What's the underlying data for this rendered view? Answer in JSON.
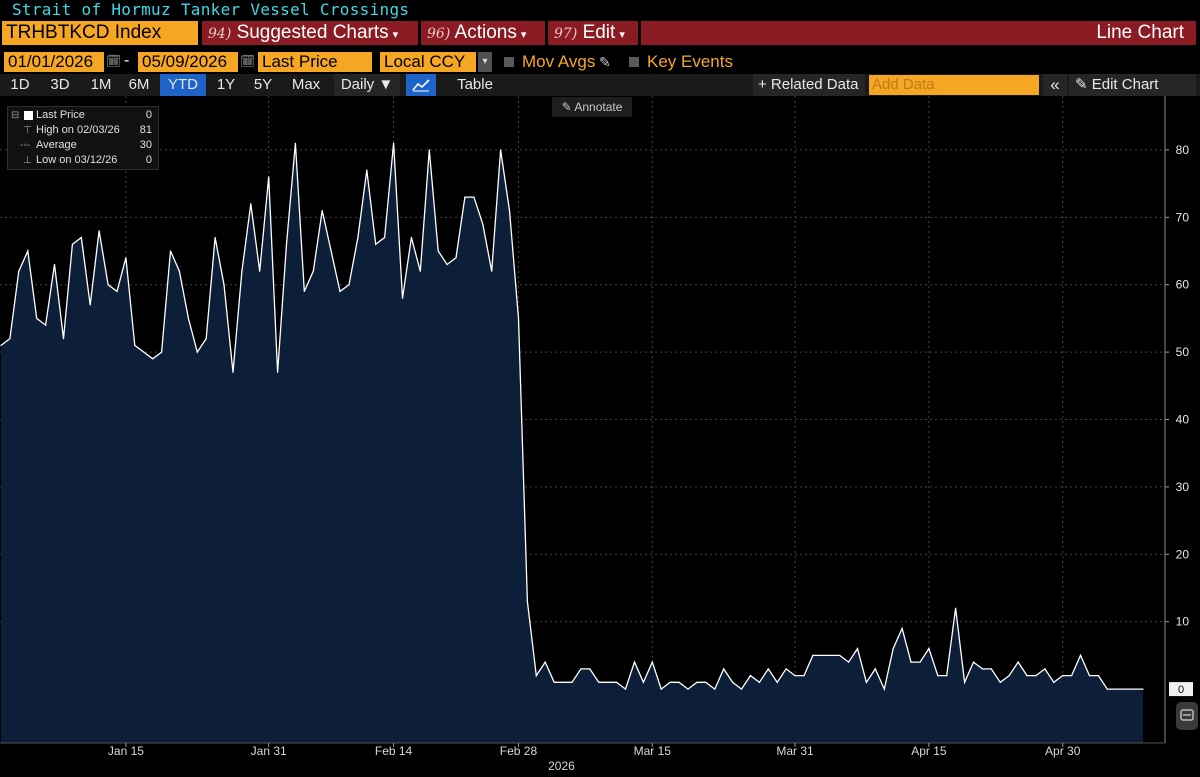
{
  "window_title": "Strait of Hormuz Tanker Vessel Crossings",
  "command_bar": {
    "ticker": "TRHBTKCD Index",
    "menus": [
      {
        "num": "94)",
        "label": "Suggested Charts"
      },
      {
        "num": "96)",
        "label": "Actions"
      },
      {
        "num": "97)",
        "label": "Edit"
      }
    ],
    "chart_type": "Line Chart"
  },
  "params": {
    "start_date": "01/01/2026",
    "end_date": "05/09/2026",
    "field": "Last Price",
    "currency": "Local CCY",
    "mov_avgs": "Mov Avgs",
    "key_events": "Key Events"
  },
  "toolbar": {
    "ranges": [
      "1D",
      "3D",
      "1M",
      "6M",
      "YTD",
      "1Y",
      "5Y",
      "Max"
    ],
    "active_range": "YTD",
    "frequency": "Daily ▼",
    "table": "Table",
    "related_data": "+ Related Data",
    "add_data_placeholder": "Add Data",
    "collapse": "«",
    "edit_chart": "Edit Chart"
  },
  "annotate": "Annotate",
  "legend": {
    "last_price": {
      "label": "Last Price",
      "value": "0"
    },
    "high": {
      "label": "High on 02/03/26",
      "value": "81"
    },
    "average": {
      "label": "Average",
      "value": "30"
    },
    "low": {
      "label": "Low on 03/12/26",
      "value": "0"
    }
  },
  "colors": {
    "series_line": "#ffffff",
    "series_fill": "#0c1e38",
    "accent_orange": "#f5a623",
    "menu_red": "#8a1b22",
    "title_cyan": "#40d8e8"
  },
  "chart_data": {
    "type": "area",
    "title": "Strait of Hormuz Tanker Vessel Crossings",
    "x_start": "2026-01-01",
    "x_end": "2026-05-09",
    "x_ticks": [
      {
        "date": "2026-01-15",
        "label": "Jan 15"
      },
      {
        "date": "2026-01-31",
        "label": "Jan 31"
      },
      {
        "date": "2026-02-14",
        "label": "Feb 14"
      },
      {
        "date": "2026-02-28",
        "label": "Feb 28"
      },
      {
        "date": "2026-03-15",
        "label": "Mar 15"
      },
      {
        "date": "2026-03-31",
        "label": "Mar 31"
      },
      {
        "date": "2026-04-15",
        "label": "Apr 15"
      },
      {
        "date": "2026-04-30",
        "label": "Apr 30"
      }
    ],
    "year_label": "2026",
    "ylim": [
      -8,
      88
    ],
    "y_ticks": [
      10,
      20,
      30,
      40,
      50,
      60,
      70,
      80
    ],
    "last_value_label": "0",
    "grid": true,
    "legend_position": "top-left",
    "series": [
      {
        "name": "Last Price",
        "points": [
          [
            "2026-01-01",
            51
          ],
          [
            "2026-01-02",
            52
          ],
          [
            "2026-01-03",
            62
          ],
          [
            "2026-01-04",
            65
          ],
          [
            "2026-01-05",
            55
          ],
          [
            "2026-01-06",
            54
          ],
          [
            "2026-01-07",
            63
          ],
          [
            "2026-01-08",
            52
          ],
          [
            "2026-01-09",
            66
          ],
          [
            "2026-01-10",
            67
          ],
          [
            "2026-01-11",
            57
          ],
          [
            "2026-01-12",
            68
          ],
          [
            "2026-01-13",
            60
          ],
          [
            "2026-01-14",
            59
          ],
          [
            "2026-01-15",
            64
          ],
          [
            "2026-01-16",
            51
          ],
          [
            "2026-01-17",
            50
          ],
          [
            "2026-01-18",
            49
          ],
          [
            "2026-01-19",
            50
          ],
          [
            "2026-01-20",
            65
          ],
          [
            "2026-01-21",
            62
          ],
          [
            "2026-01-22",
            55
          ],
          [
            "2026-01-23",
            50
          ],
          [
            "2026-01-24",
            52
          ],
          [
            "2026-01-25",
            67
          ],
          [
            "2026-01-26",
            60
          ],
          [
            "2026-01-27",
            47
          ],
          [
            "2026-01-28",
            62
          ],
          [
            "2026-01-29",
            72
          ],
          [
            "2026-01-30",
            62
          ],
          [
            "2026-01-31",
            76
          ],
          [
            "2026-02-01",
            47
          ],
          [
            "2026-02-02",
            66
          ],
          [
            "2026-02-03",
            81
          ],
          [
            "2026-02-04",
            59
          ],
          [
            "2026-02-05",
            62
          ],
          [
            "2026-02-06",
            71
          ],
          [
            "2026-02-07",
            65
          ],
          [
            "2026-02-08",
            59
          ],
          [
            "2026-02-09",
            60
          ],
          [
            "2026-02-10",
            67
          ],
          [
            "2026-02-11",
            77
          ],
          [
            "2026-02-12",
            66
          ],
          [
            "2026-02-13",
            67
          ],
          [
            "2026-02-14",
            81
          ],
          [
            "2026-02-15",
            58
          ],
          [
            "2026-02-16",
            67
          ],
          [
            "2026-02-17",
            62
          ],
          [
            "2026-02-18",
            80
          ],
          [
            "2026-02-19",
            65
          ],
          [
            "2026-02-20",
            63
          ],
          [
            "2026-02-21",
            64
          ],
          [
            "2026-02-22",
            73
          ],
          [
            "2026-02-23",
            73
          ],
          [
            "2026-02-24",
            69
          ],
          [
            "2026-02-25",
            62
          ],
          [
            "2026-02-26",
            80
          ],
          [
            "2026-02-27",
            71
          ],
          [
            "2026-02-28",
            55
          ],
          [
            "2026-03-01",
            13
          ],
          [
            "2026-03-02",
            2
          ],
          [
            "2026-03-03",
            4
          ],
          [
            "2026-03-04",
            1
          ],
          [
            "2026-03-05",
            1
          ],
          [
            "2026-03-06",
            1
          ],
          [
            "2026-03-07",
            3
          ],
          [
            "2026-03-08",
            3
          ],
          [
            "2026-03-09",
            1
          ],
          [
            "2026-03-10",
            1
          ],
          [
            "2026-03-11",
            1
          ],
          [
            "2026-03-12",
            0
          ],
          [
            "2026-03-13",
            4
          ],
          [
            "2026-03-14",
            1
          ],
          [
            "2026-03-15",
            4
          ],
          [
            "2026-03-16",
            0
          ],
          [
            "2026-03-17",
            1
          ],
          [
            "2026-03-18",
            1
          ],
          [
            "2026-03-19",
            0
          ],
          [
            "2026-03-20",
            1
          ],
          [
            "2026-03-21",
            1
          ],
          [
            "2026-03-22",
            0
          ],
          [
            "2026-03-23",
            3
          ],
          [
            "2026-03-24",
            1
          ],
          [
            "2026-03-25",
            0
          ],
          [
            "2026-03-26",
            2
          ],
          [
            "2026-03-27",
            1
          ],
          [
            "2026-03-28",
            3
          ],
          [
            "2026-03-29",
            1
          ],
          [
            "2026-03-30",
            3
          ],
          [
            "2026-03-31",
            2
          ],
          [
            "2026-04-01",
            2
          ],
          [
            "2026-04-02",
            5
          ],
          [
            "2026-04-03",
            5
          ],
          [
            "2026-04-04",
            5
          ],
          [
            "2026-04-05",
            5
          ],
          [
            "2026-04-06",
            4
          ],
          [
            "2026-04-07",
            6
          ],
          [
            "2026-04-08",
            1
          ],
          [
            "2026-04-09",
            3
          ],
          [
            "2026-04-10",
            0
          ],
          [
            "2026-04-11",
            6
          ],
          [
            "2026-04-12",
            9
          ],
          [
            "2026-04-13",
            4
          ],
          [
            "2026-04-14",
            4
          ],
          [
            "2026-04-15",
            6
          ],
          [
            "2026-04-16",
            2
          ],
          [
            "2026-04-17",
            2
          ],
          [
            "2026-04-18",
            12
          ],
          [
            "2026-04-19",
            1
          ],
          [
            "2026-04-20",
            4
          ],
          [
            "2026-04-21",
            3
          ],
          [
            "2026-04-22",
            3
          ],
          [
            "2026-04-23",
            1
          ],
          [
            "2026-04-24",
            2
          ],
          [
            "2026-04-25",
            4
          ],
          [
            "2026-04-26",
            2
          ],
          [
            "2026-04-27",
            2
          ],
          [
            "2026-04-28",
            3
          ],
          [
            "2026-04-29",
            1
          ],
          [
            "2026-04-30",
            2
          ],
          [
            "2026-05-01",
            2
          ],
          [
            "2026-05-02",
            5
          ],
          [
            "2026-05-03",
            2
          ],
          [
            "2026-05-04",
            2
          ],
          [
            "2026-05-05",
            0
          ],
          [
            "2026-05-06",
            0
          ],
          [
            "2026-05-07",
            0
          ],
          [
            "2026-05-08",
            0
          ],
          [
            "2026-05-09",
            0
          ]
        ]
      }
    ]
  }
}
